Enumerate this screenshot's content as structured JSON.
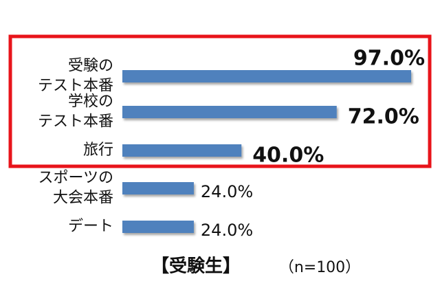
{
  "chart_data": {
    "type": "bar",
    "orientation": "horizontal",
    "title": "【受験生】",
    "subtitle": "（n=100）",
    "categories": [
      "受験の\nテスト本番",
      "学校の\nテスト本番",
      "旅行",
      "スポーツの\n大会本番",
      "デート"
    ],
    "values": [
      97.0,
      72.0,
      40.0,
      24.0,
      24.0
    ],
    "value_labels": [
      "97.0%",
      "72.0%",
      "40.0%",
      "24.0%",
      "24.0%"
    ],
    "color": "#4f81bd"
  }
}
